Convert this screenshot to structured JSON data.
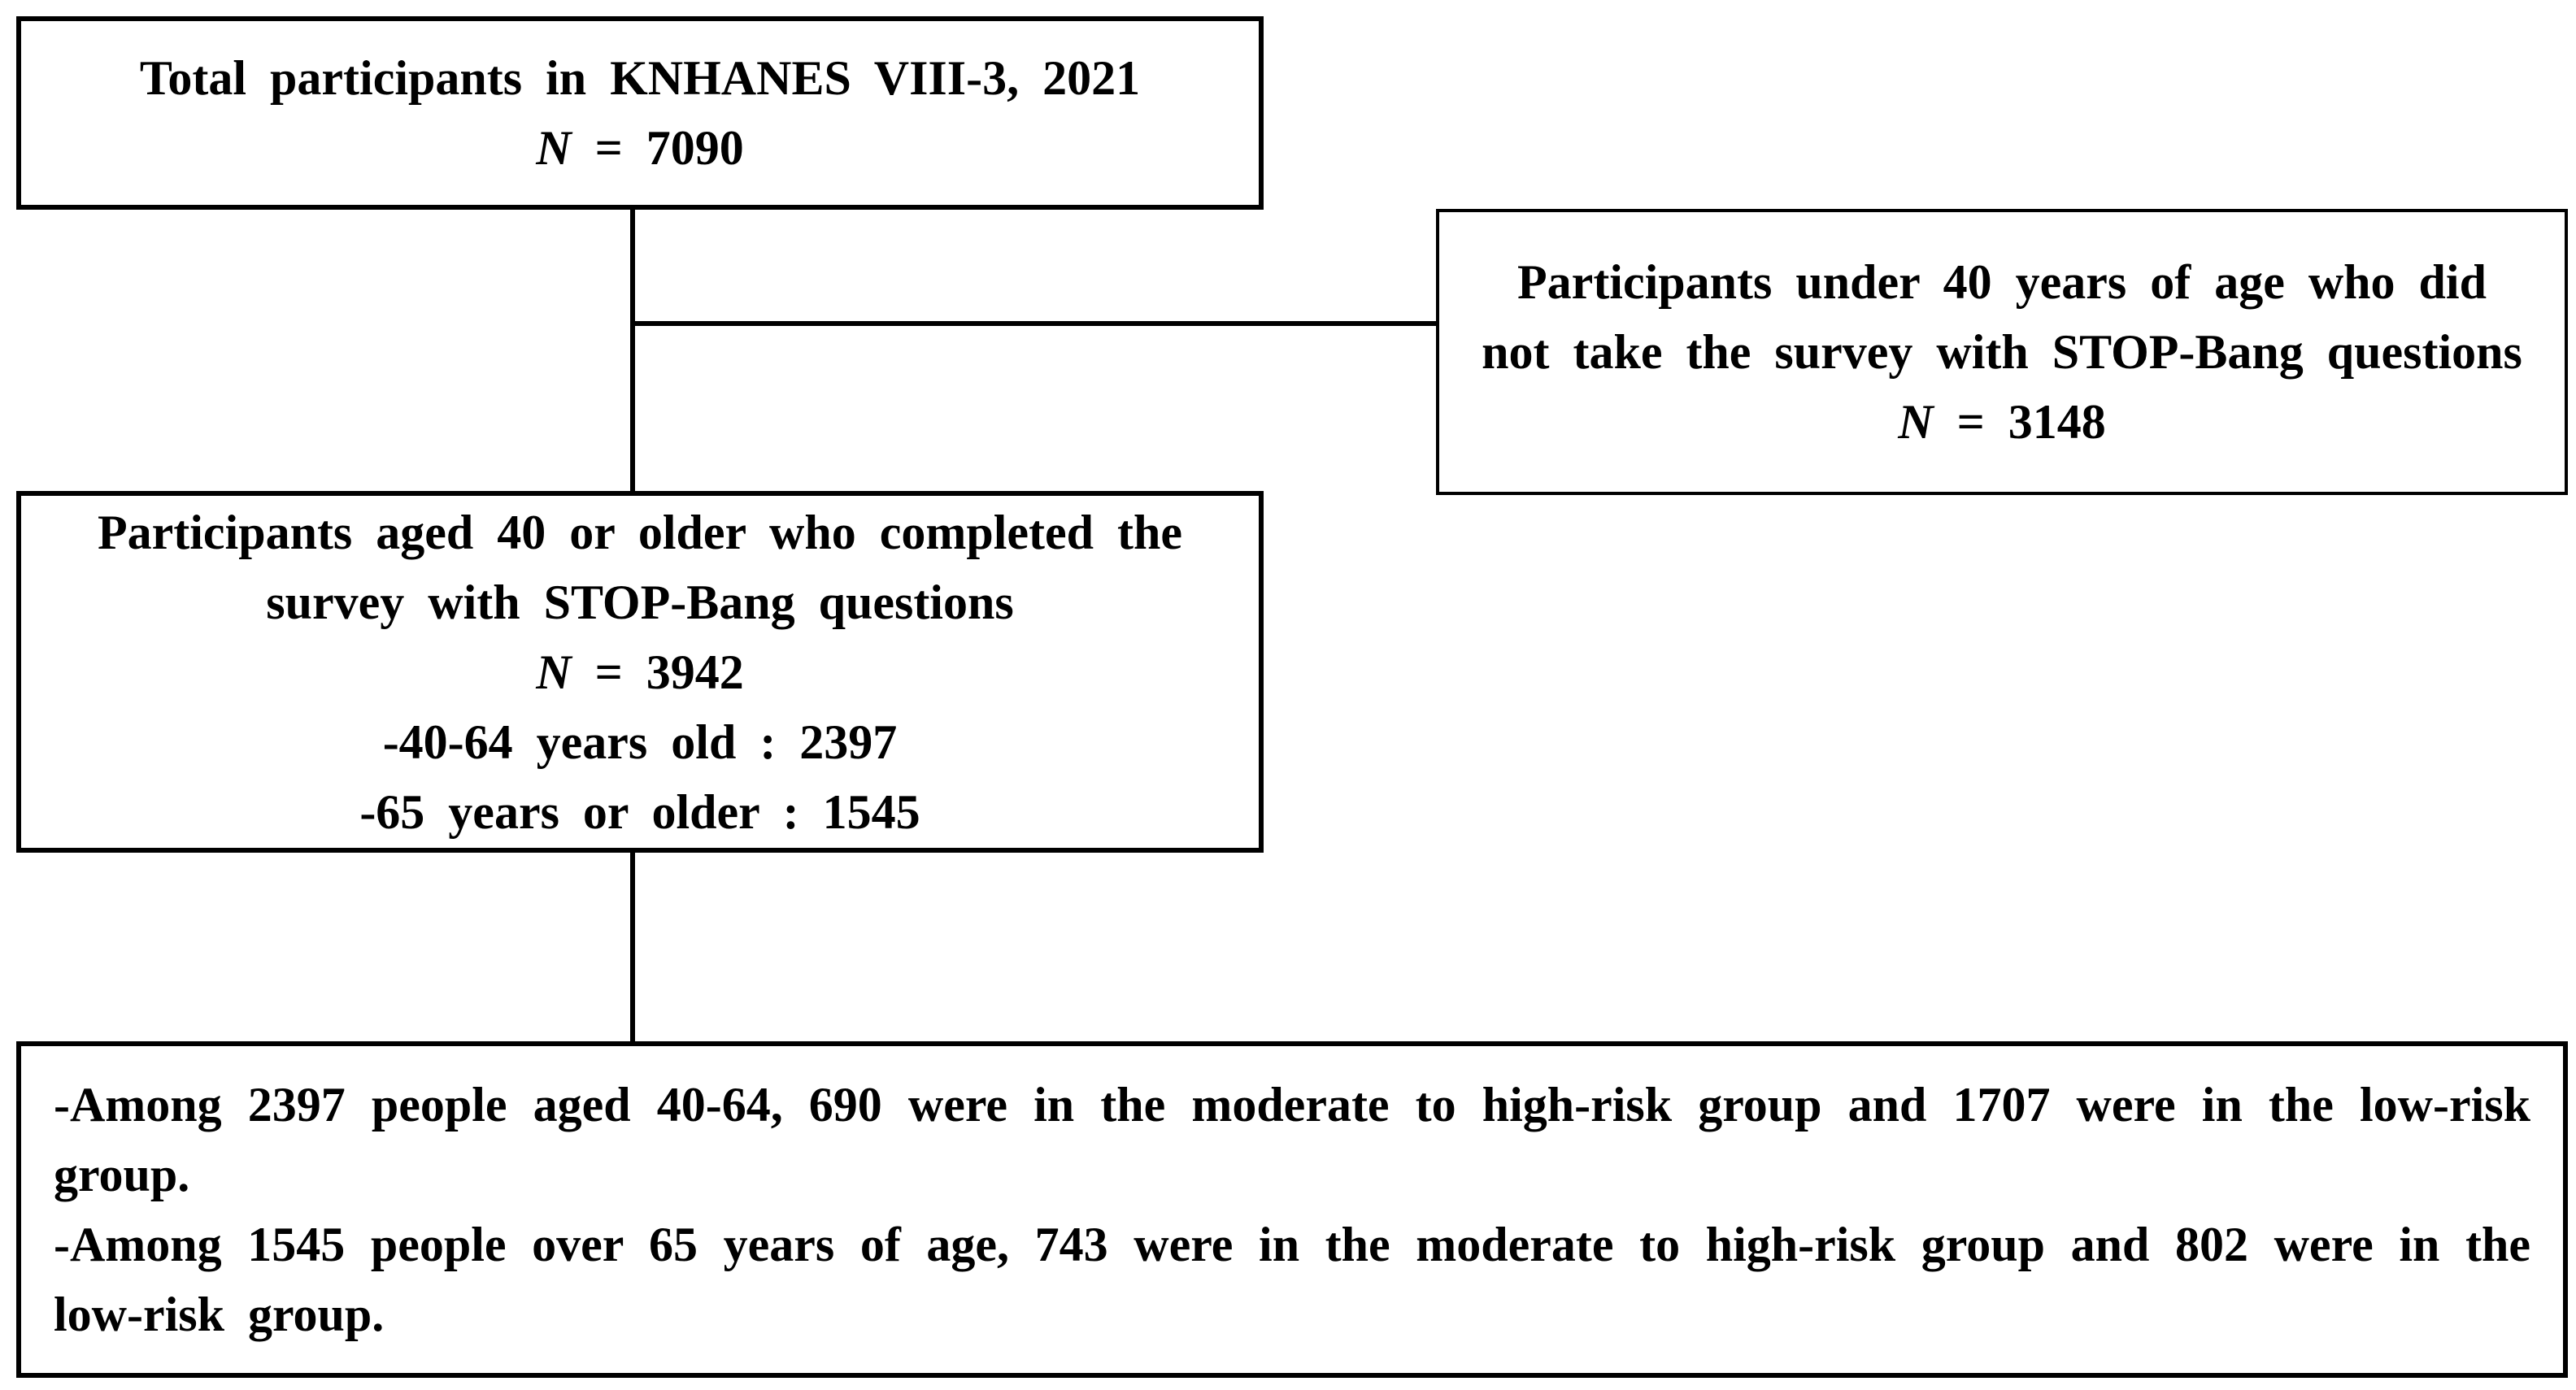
{
  "nodes": [
    {
      "lines": [
        "Total participants in KNHANES VIII-3, 2021"
      ],
      "n_symbol": "N",
      "n_value": "= 7090",
      "extra": []
    },
    {
      "lines": [
        "Participants under 40 years of age who did not take the survey with STOP-Bang questions"
      ],
      "n_symbol": "N",
      "n_value": "= 3148",
      "extra": []
    },
    {
      "lines": [
        "Participants aged 40 or older who completed the survey with STOP-Bang questions"
      ],
      "n_symbol": "N",
      "n_value": "= 3942",
      "extra": [
        "-40-64 years old : 2397",
        "-65 years or older : 1545"
      ]
    },
    {
      "lines": [
        "-Among 2397 people aged 40-64, 690 were in the moderate to high-risk group and 1707 were in the low-risk group.",
        "-Among 1545 people over 65 years of age, 743 were in the moderate to high-risk group and 802 were in the low-risk group."
      ],
      "extra": []
    }
  ]
}
